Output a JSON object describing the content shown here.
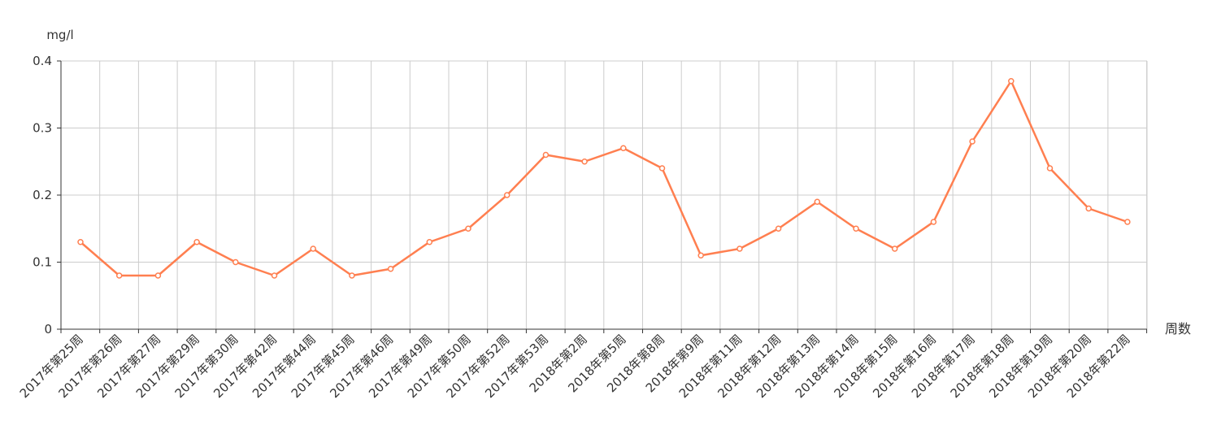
{
  "chart_data": {
    "type": "line",
    "ylabel": "mg/l",
    "xlabel": "周数",
    "ylim": [
      0,
      0.4
    ],
    "yticks": [
      0,
      0.1,
      0.2,
      0.3,
      0.4
    ],
    "ytick_labels": [
      "0",
      "0.1",
      "0.2",
      "0.3",
      "0.4"
    ],
    "grid": true,
    "legend": "none",
    "categories": [
      "2017年第25周",
      "2017年第26周",
      "2017年第27周",
      "2017年第29周",
      "2017年第30周",
      "2017年第42周",
      "2017年第44周",
      "2017年第45周",
      "2017年第46周",
      "2017年第49周",
      "2017年第50周",
      "2017年第52周",
      "2017年第53周",
      "2018年第2周",
      "2018年第5周",
      "2018年第8周",
      "2018年第9周",
      "2018年第11周",
      "2018年第12周",
      "2018年第13周",
      "2018年第14周",
      "2018年第15周",
      "2018年第16周",
      "2018年第17周",
      "2018年第18周",
      "2018年第19周",
      "2018年第20周",
      "2018年第22周"
    ],
    "series": [
      {
        "values": [
          0.13,
          0.08,
          0.08,
          0.13,
          0.1,
          0.08,
          0.12,
          0.08,
          0.09,
          0.13,
          0.15,
          0.2,
          0.26,
          0.25,
          0.27,
          0.24,
          0.11,
          0.12,
          0.15,
          0.19,
          0.15,
          0.12,
          0.16,
          0.28,
          0.37,
          0.24,
          0.18,
          0.16
        ],
        "color": "#ff7f50"
      }
    ],
    "colors": {
      "line": "#ff7f50",
      "grid": "#cccccc",
      "axis": "#333333",
      "text": "#333333"
    }
  }
}
